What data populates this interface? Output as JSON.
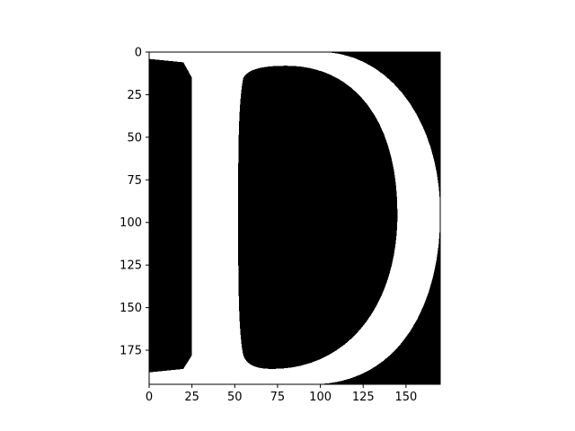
{
  "chart_data": {
    "type": "heatmap",
    "image": "binary raster of the letter D (white glyph on black background)",
    "colormap": "gray",
    "colors": {
      "background": "#000000",
      "glyph": "#ffffff",
      "axis": "#000000"
    },
    "xlim": [
      0,
      170
    ],
    "ylim": [
      195,
      0
    ],
    "x_ticks": [
      0,
      25,
      50,
      75,
      100,
      125,
      150
    ],
    "y_ticks": [
      0,
      25,
      50,
      75,
      100,
      125,
      150,
      175
    ],
    "x_tick_labels": [
      "0",
      "25",
      "50",
      "75",
      "100",
      "125",
      "150"
    ],
    "y_tick_labels": [
      "0",
      "25",
      "50",
      "75",
      "100",
      "125",
      "150",
      "175"
    ],
    "title": "",
    "xlabel": "",
    "ylabel": "",
    "grid": false,
    "glyph": "D"
  }
}
